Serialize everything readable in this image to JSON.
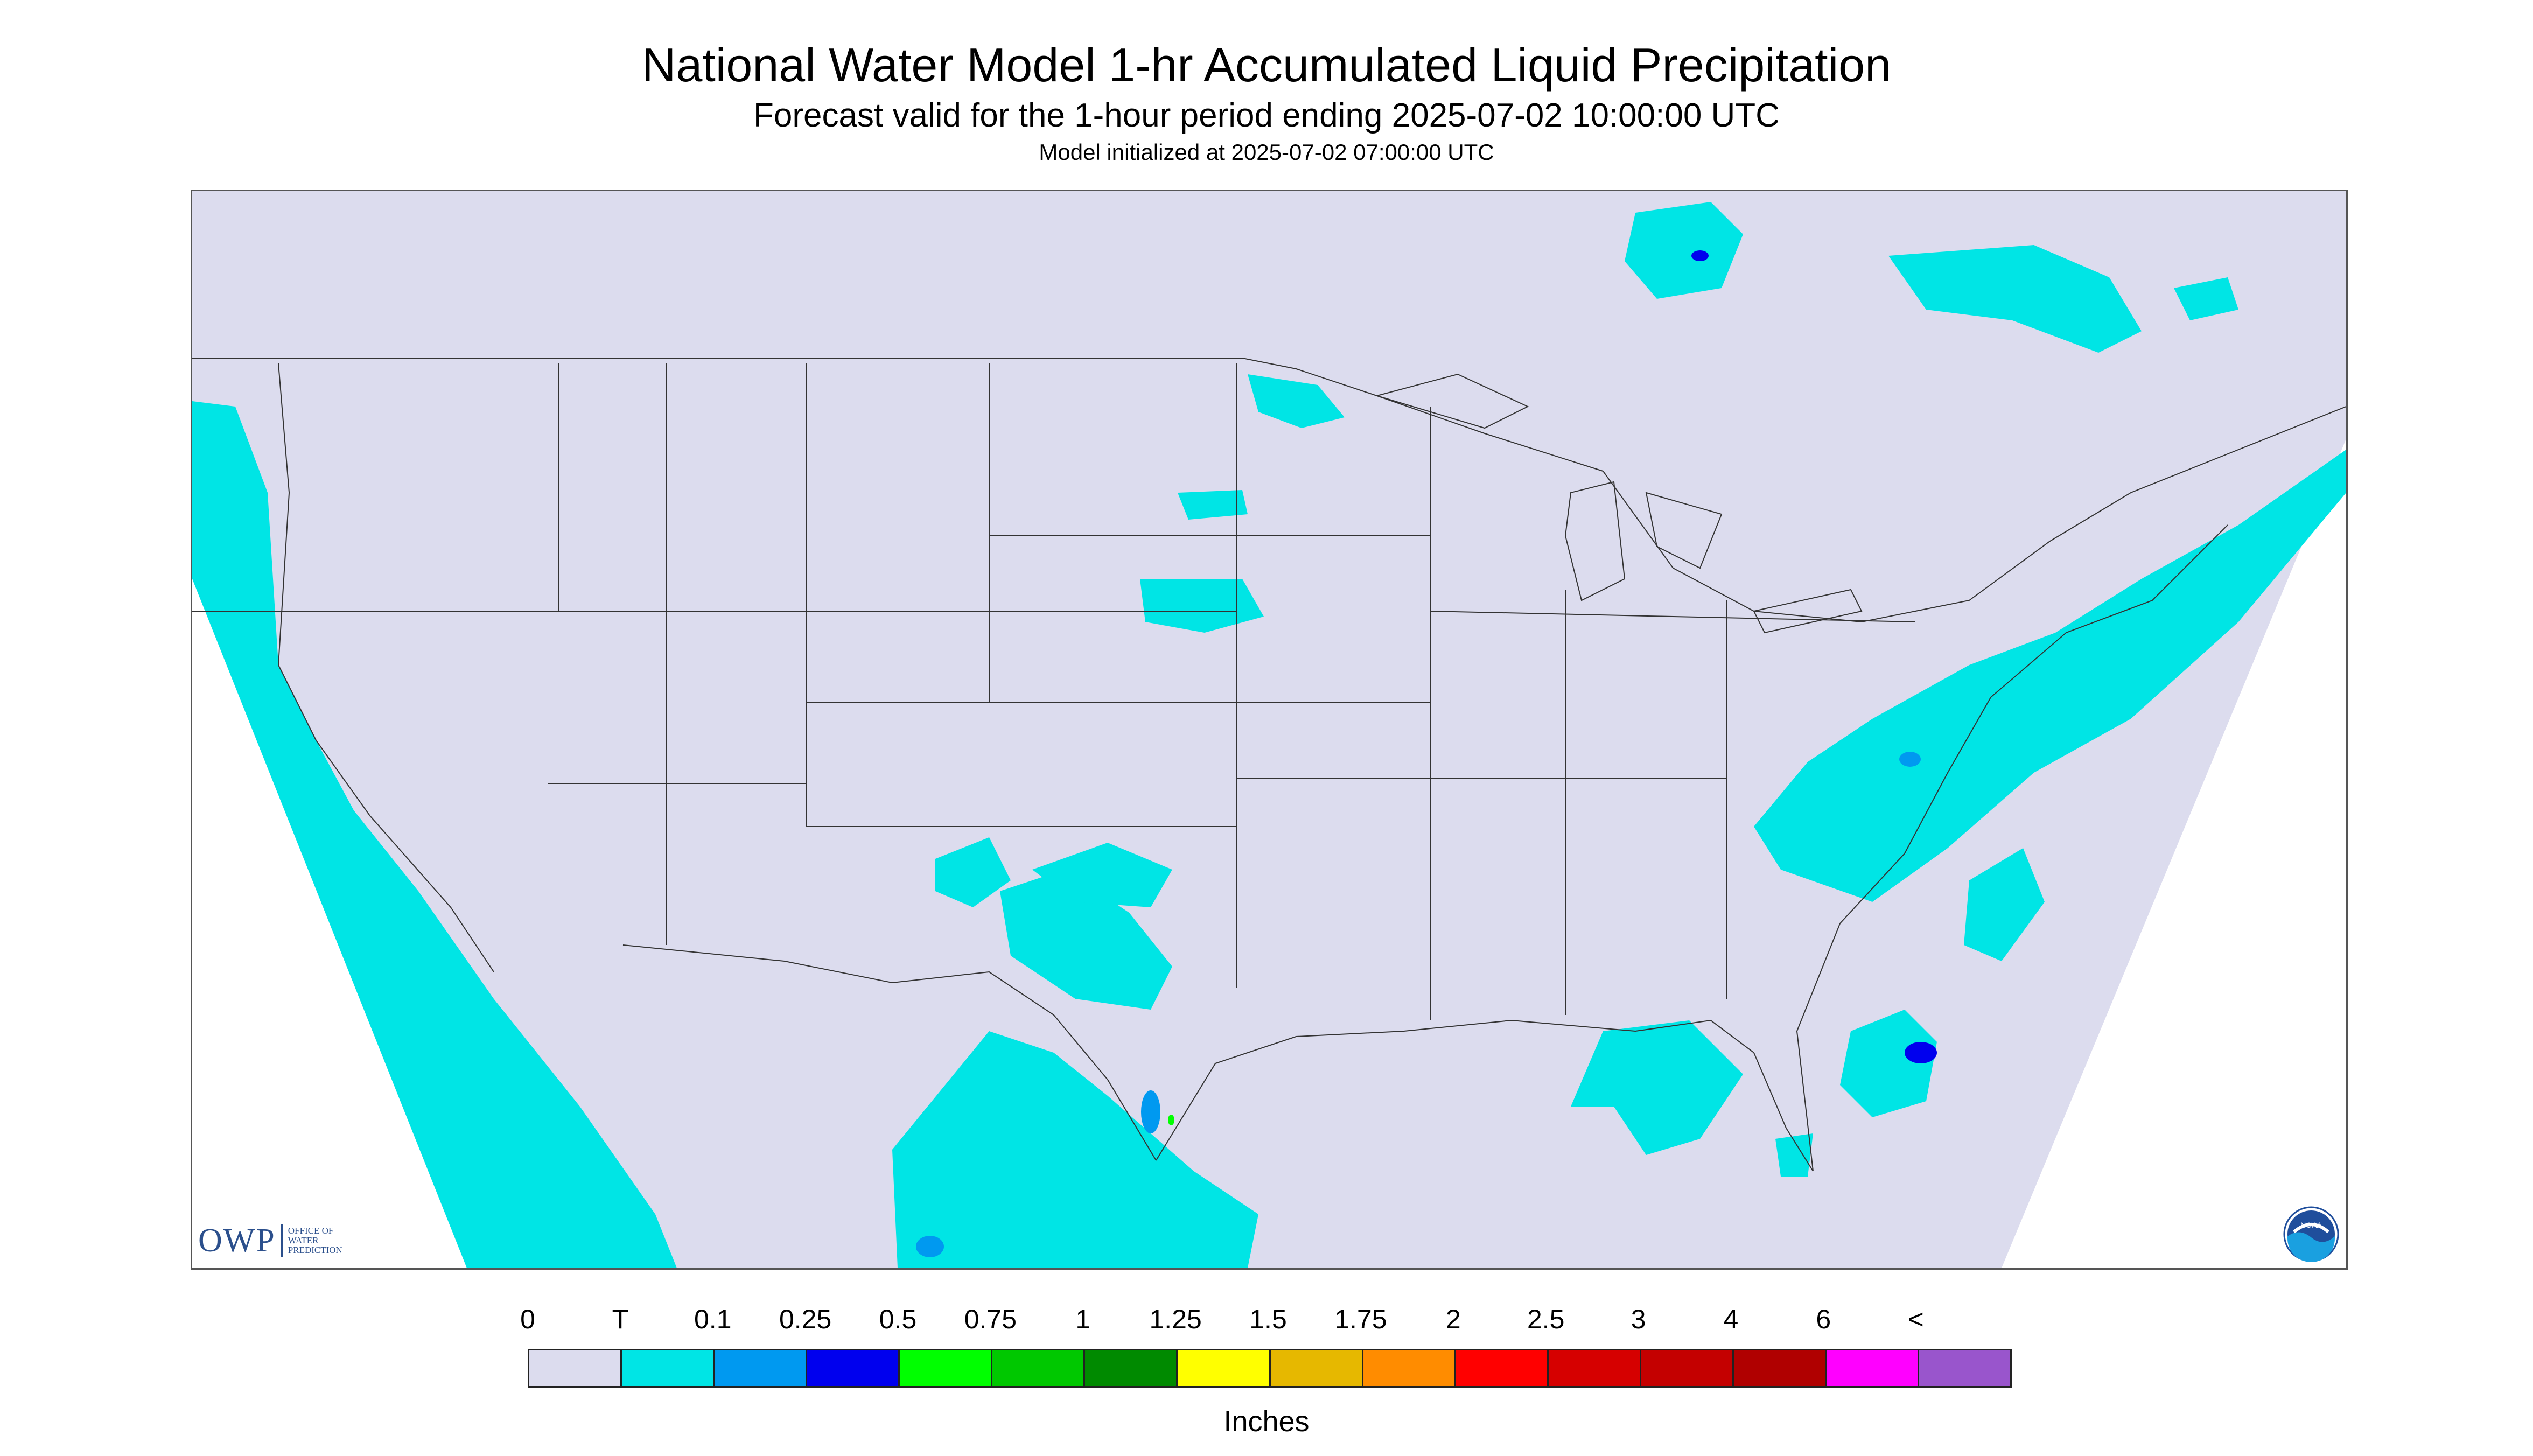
{
  "header": {
    "title": "National Water Model 1-hr Accumulated Liquid Precipitation",
    "subtitle": "Forecast valid for the 1-hour period ending 2025-07-02 10:00:00 UTC",
    "init_line": "Model initialized at 2025-07-02 07:00:00 UTC"
  },
  "map": {
    "domain_fill_color": "#dcdcee",
    "outside_domain_color": "#ffffff",
    "boundary_color": "#333333",
    "trace_color": "#00e5e5",
    "heavier_colors": [
      "#0099f0",
      "#0000ee",
      "#00ff00",
      "#ffff00"
    ]
  },
  "logos": {
    "owp_word": "OWP",
    "owp_sub": [
      "OFFICE OF",
      "WATER",
      "PREDICTION"
    ],
    "noaa_text": "NOAA"
  },
  "legend": {
    "units": "Inches",
    "ticks": [
      "0",
      "T",
      "0.1",
      "0.25",
      "0.5",
      "0.75",
      "1",
      "1.25",
      "1.5",
      "1.75",
      "2",
      "2.5",
      "3",
      "4",
      "6",
      "<"
    ],
    "colors": [
      "#dcdcee",
      "#00e5e5",
      "#0099f0",
      "#0000ee",
      "#00ff00",
      "#00c800",
      "#008a00",
      "#ffff00",
      "#e6b800",
      "#ff8c00",
      "#ff0000",
      "#d60000",
      "#c40000",
      "#b00000",
      "#ff00ff",
      "#9955cc"
    ]
  }
}
